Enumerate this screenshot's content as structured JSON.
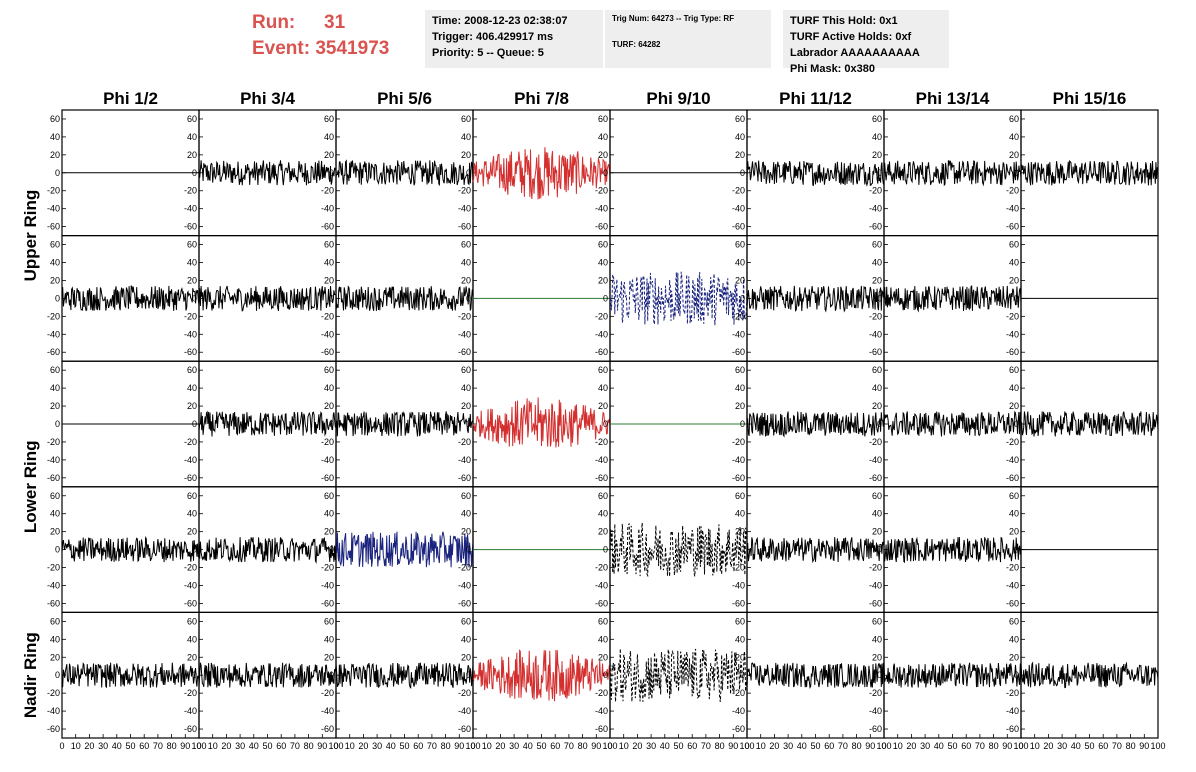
{
  "header": {
    "run_label": "Run:",
    "run_value": "31",
    "event_label": "Event:",
    "event_value": "3541973",
    "time_line": "Time: 2008-12-23 02:38:07",
    "trigger_line": "Trigger: 406.429917 ms",
    "priority_line": "Priority: 5 -- Queue: 5",
    "trig_line": "Trig Num: 64273 -- Trig Type: RF",
    "turf_line": "TURF: 64282",
    "hold_line": "TURF This Hold: 0x1",
    "active_holds_line": "TURF Active Holds: 0xf",
    "labrador_line": "Labrador AAAAAAAAAA",
    "phi_mask_line": "Phi Mask: 0x380"
  },
  "colors": {
    "header_red": "#d9534f",
    "trace_default": "#000000",
    "trace_red": "#d32f2f",
    "trace_blue": "#1a237e",
    "trace_green": "#2e7d32",
    "info_box_bg": "#eeeeee"
  },
  "chart_data": {
    "type": "line",
    "columns": [
      "Phi 1/2",
      "Phi 3/4",
      "Phi 5/6",
      "Phi 7/8",
      "Phi 9/10",
      "Phi 11/12",
      "Phi 13/14",
      "Phi 15/16"
    ],
    "rows": [
      "Upper Ring",
      "Lower Ring",
      "Nadir Ring"
    ],
    "subrows_per_ring": {
      "Upper Ring": 2,
      "Lower Ring": 2,
      "Nadir Ring": 1
    },
    "xlim": [
      0,
      100
    ],
    "ylim": [
      -70,
      70
    ],
    "x_ticks": [
      0,
      10,
      20,
      30,
      40,
      50,
      60,
      70,
      80,
      90,
      100
    ],
    "y_ticks": [
      -60,
      -40,
      -20,
      0,
      20,
      40,
      60
    ],
    "grid": false,
    "panels": [
      [
        "flat",
        "noise",
        "noise",
        "red",
        "flat",
        "noise",
        "noise",
        "noise"
      ],
      [
        "noise",
        "noise",
        "noise",
        "flat-green",
        "blue-dashed",
        "noise",
        "noise",
        "flat"
      ],
      [
        "flat",
        "noise",
        "noise",
        "red",
        "flat-green",
        "noise",
        "noise",
        "noise"
      ],
      [
        "noise",
        "noise",
        "blue",
        "flat-green",
        "black-dashed",
        "noise",
        "noise",
        "flat"
      ],
      [
        "noise",
        "noise",
        "noise",
        "red",
        "black-dashed",
        "noise",
        "noise",
        "noise"
      ]
    ]
  }
}
